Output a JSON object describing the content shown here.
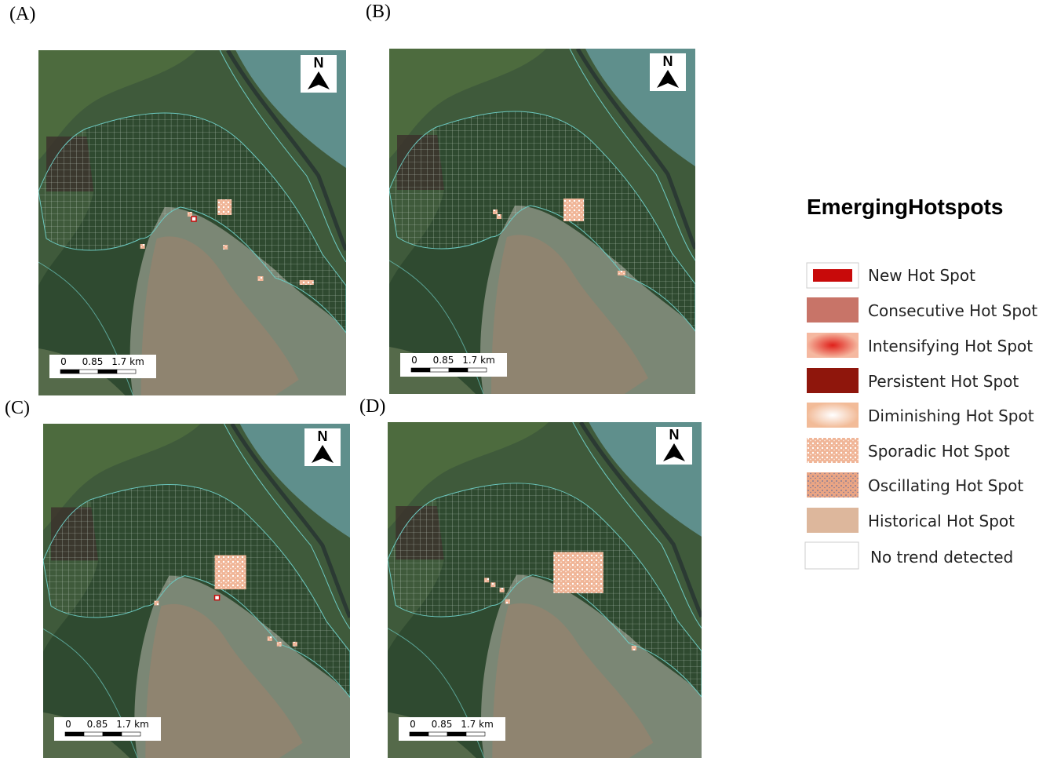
{
  "panels": [
    {
      "label": "(A)",
      "north": "N",
      "scale": [
        "0",
        "0.85",
        "1.7 km"
      ]
    },
    {
      "label": "(B)",
      "north": "N",
      "scale": [
        "0",
        "0.85",
        "1.7 km"
      ]
    },
    {
      "label": "(C)",
      "north": "N",
      "scale": [
        "0",
        "0.85",
        "1.7 km"
      ]
    },
    {
      "label": "(D)",
      "north": "N",
      "scale": [
        "0",
        "0.85",
        "1.7 km"
      ]
    }
  ],
  "legend": {
    "title": "EmergingHotspots",
    "items": [
      "New Hot Spot",
      "Consecutive Hot Spot",
      "Intensifying Hot Spot",
      "Persistent Hot Spot",
      "Diminishing Hot Spot",
      "Sporadic Hot Spot",
      "Oscillating Hot Spot",
      "Historical Hot Spot",
      "No trend detected"
    ]
  }
}
